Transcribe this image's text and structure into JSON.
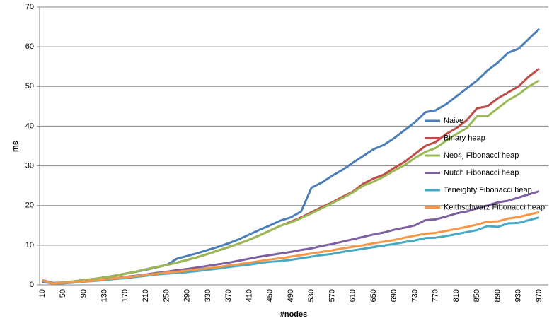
{
  "chart_data": {
    "type": "line",
    "x_label": "#nodes",
    "y_label": "ms",
    "categories": [
      "10",
      null,
      "50",
      null,
      "90",
      null,
      "130",
      null,
      "170",
      null,
      "210",
      null,
      "250",
      null,
      "290",
      null,
      "330",
      null,
      "370",
      null,
      "410",
      null,
      "450",
      null,
      "490",
      null,
      "530",
      null,
      "570",
      null,
      "610",
      null,
      "650",
      null,
      "690",
      null,
      "730",
      null,
      "770",
      null,
      "810",
      null,
      "850",
      null,
      "890",
      null,
      "930",
      null,
      "970"
    ],
    "ylim": [
      0,
      70
    ],
    "yticks": [
      0,
      10,
      20,
      30,
      40,
      50,
      60,
      70
    ],
    "grid": true,
    "legend": "right",
    "series": [
      {
        "name": "Naive",
        "color": "#4a7ebb",
        "values": [
          1.2,
          0.5,
          0.6,
          0.9,
          1.2,
          1.5,
          1.9,
          2.3,
          2.8,
          3.3,
          3.8,
          4.4,
          5.0,
          6.6,
          7.3,
          8.0,
          8.8,
          9.6,
          10.5,
          11.5,
          12.7,
          13.9,
          15.0,
          16.2,
          17.0,
          18.5,
          24.5,
          25.8,
          27.5,
          29.0,
          30.8,
          32.5,
          34.2,
          35.3,
          37.0,
          39.0,
          41.0,
          43.5,
          44.0,
          45.5,
          47.5,
          49.5,
          51.5,
          54.0,
          56.0,
          58.5,
          59.5,
          62.0,
          64.5
        ]
      },
      {
        "name": "Binary heap",
        "color": "#be4b48",
        "values": [
          1.0,
          0.4,
          0.6,
          0.9,
          1.2,
          1.5,
          1.9,
          2.3,
          2.8,
          3.3,
          3.9,
          4.5,
          5.0,
          5.6,
          6.3,
          7.0,
          7.8,
          8.7,
          9.5,
          10.4,
          11.4,
          12.5,
          13.7,
          14.9,
          15.9,
          17.0,
          18.3,
          19.6,
          20.8,
          22.2,
          23.5,
          25.5,
          26.8,
          27.8,
          29.5,
          31.0,
          33.0,
          35.0,
          36.0,
          38.0,
          39.5,
          41.5,
          44.5,
          45.0,
          47.0,
          48.5,
          50.0,
          52.5,
          54.5
        ]
      },
      {
        "name": "Neo4j Fibonacci heap",
        "color": "#98b954",
        "values": [
          0.9,
          0.4,
          0.6,
          0.9,
          1.2,
          1.5,
          1.9,
          2.3,
          2.8,
          3.3,
          3.9,
          4.5,
          5.0,
          5.6,
          6.3,
          7.0,
          7.8,
          8.7,
          9.5,
          10.4,
          11.4,
          12.5,
          13.7,
          14.9,
          15.7,
          16.8,
          18.0,
          19.3,
          20.6,
          21.9,
          23.3,
          25.0,
          26.0,
          27.3,
          28.8,
          30.2,
          32.0,
          33.5,
          34.5,
          36.3,
          38.0,
          39.5,
          42.5,
          42.5,
          44.5,
          46.5,
          48.0,
          50.0,
          51.5
        ]
      },
      {
        "name": "Nutch Fibonacci heap",
        "color": "#7d60a0",
        "values": [
          0.8,
          0.3,
          0.4,
          0.6,
          0.9,
          1.1,
          1.4,
          1.7,
          2.0,
          2.3,
          2.6,
          3.0,
          3.3,
          3.7,
          4.0,
          4.4,
          4.8,
          5.2,
          5.6,
          6.1,
          6.6,
          7.1,
          7.5,
          7.9,
          8.3,
          8.8,
          9.2,
          9.8,
          10.3,
          10.9,
          11.5,
          12.1,
          12.7,
          13.2,
          13.9,
          14.4,
          15.0,
          16.3,
          16.5,
          17.2,
          18.0,
          18.5,
          19.3,
          20.0,
          20.8,
          21.2,
          22.0,
          22.8,
          23.6
        ]
      },
      {
        "name": "Teneighty Fibonacci heap",
        "color": "#46aac5",
        "values": [
          1.0,
          0.3,
          0.4,
          0.6,
          0.8,
          1.0,
          1.2,
          1.5,
          1.7,
          2.0,
          2.3,
          2.6,
          2.8,
          3.0,
          3.2,
          3.5,
          3.8,
          4.1,
          4.5,
          4.8,
          5.1,
          5.5,
          5.8,
          6.0,
          6.3,
          6.7,
          7.1,
          7.5,
          7.8,
          8.3,
          8.7,
          9.1,
          9.5,
          9.9,
          10.3,
          10.8,
          11.2,
          11.8,
          11.9,
          12.3,
          12.8,
          13.3,
          13.8,
          14.8,
          14.6,
          15.5,
          15.6,
          16.3,
          17.0
        ]
      },
      {
        "name": "Keithschwarz Fibonacci heap",
        "color": "#f79646",
        "values": [
          1.2,
          0.3,
          0.5,
          0.7,
          0.9,
          1.1,
          1.4,
          1.7,
          1.9,
          2.2,
          2.5,
          2.8,
          3.1,
          3.3,
          3.6,
          3.9,
          4.2,
          4.5,
          4.9,
          5.2,
          5.6,
          6.0,
          6.4,
          6.7,
          7.1,
          7.5,
          7.9,
          8.3,
          8.7,
          9.2,
          9.6,
          10.0,
          10.5,
          10.9,
          11.3,
          11.9,
          12.4,
          12.9,
          13.1,
          13.6,
          14.1,
          14.6,
          15.2,
          15.9,
          16.0,
          16.7,
          17.1,
          17.7,
          18.3
        ]
      }
    ]
  }
}
